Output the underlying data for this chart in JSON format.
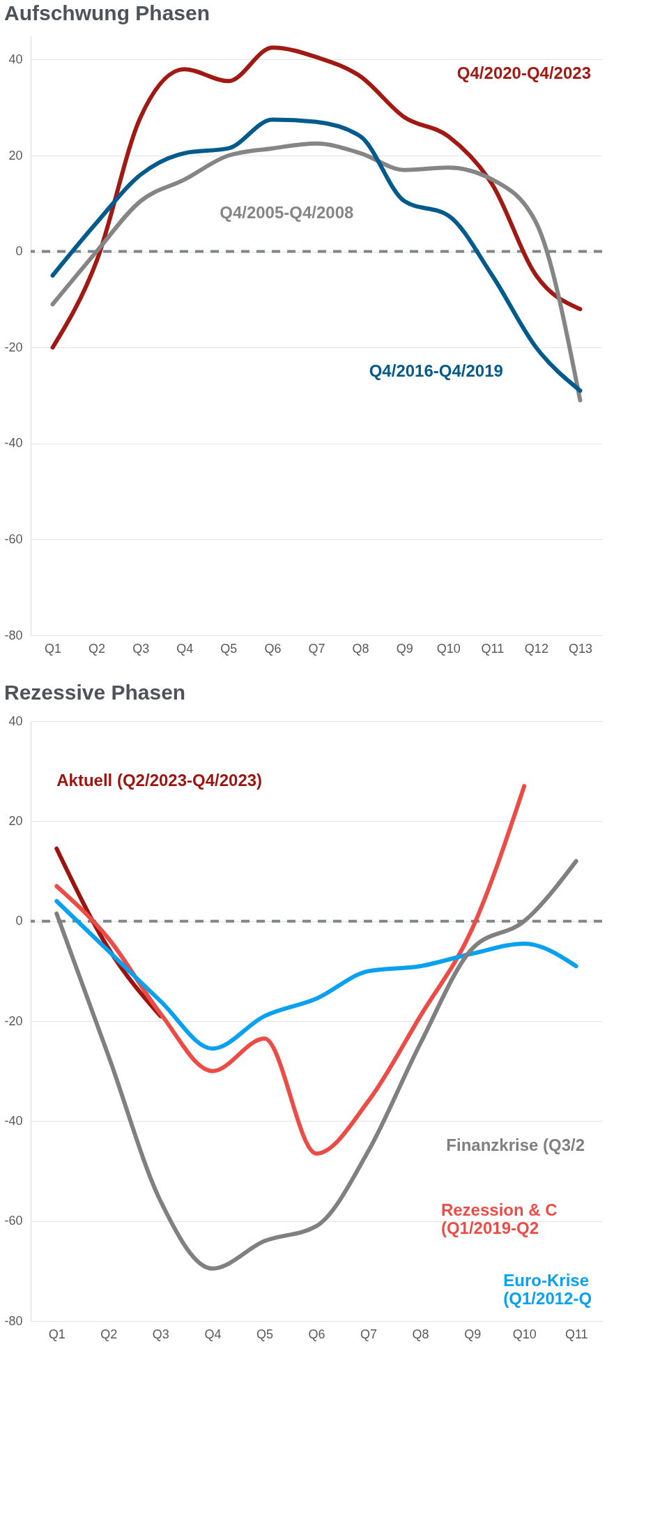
{
  "chart_data": [
    {
      "type": "line",
      "title": "Aufschwung Phasen",
      "categories": [
        "Q1",
        "Q2",
        "Q3",
        "Q4",
        "Q5",
        "Q6",
        "Q7",
        "Q8",
        "Q9",
        "Q10",
        "Q11",
        "Q12",
        "Q13"
      ],
      "ylim": [
        -80,
        45
      ],
      "yticks": [
        -80,
        -60,
        -40,
        -20,
        0,
        20,
        40
      ],
      "grid": "y",
      "ref_lines": [
        {
          "axis": "y",
          "value": 0,
          "color": "#7f8589",
          "line_style": "dashed"
        }
      ],
      "series": [
        {
          "name": "Q4/2020-Q4/2023",
          "color": "#a01912",
          "values": [
            -20,
            -2,
            28,
            38,
            35.5,
            42.5,
            40.5,
            36.5,
            28,
            24,
            14,
            -5,
            -12
          ]
        },
        {
          "name": "Q4/2005-Q4/2008",
          "color": "#858585",
          "values": [
            -11,
            0,
            10.5,
            15,
            20,
            21.5,
            22.5,
            20.5,
            17,
            17.5,
            15,
            6,
            -31
          ]
        },
        {
          "name": "Q4/2016-Q4/2019",
          "color": "#005a8c",
          "values": [
            -5,
            6,
            16,
            20.5,
            21.5,
            27.5,
            27,
            24,
            10.5,
            7.5,
            -5,
            -20,
            -29
          ]
        }
      ]
    },
    {
      "type": "line",
      "title": "Rezessive Phasen",
      "categories": [
        "Q1",
        "Q2",
        "Q3",
        "Q4",
        "Q5",
        "Q6",
        "Q7",
        "Q8",
        "Q9",
        "Q10",
        "Q11"
      ],
      "ylim": [
        -80,
        40
      ],
      "yticks": [
        -80,
        -60,
        -40,
        -20,
        0,
        20,
        40
      ],
      "grid": "y",
      "ref_lines": [
        {
          "axis": "y",
          "value": 0,
          "color": "#7f8589",
          "line_style": "dashed"
        }
      ],
      "series": [
        {
          "name": "Aktuell (Q2/2023-Q4/2023)",
          "color": "#9b1410",
          "values": [
            14.5,
            -5.5,
            -19,
            null,
            null,
            null,
            null,
            null,
            null,
            null,
            null
          ]
        },
        {
          "name": "Rezession & C\n(Q1/2019-Q2",
          "color": "#eb4c45",
          "values": [
            7,
            -3.5,
            -18.5,
            -30,
            -23.5,
            -46.5,
            -36,
            -19,
            -1.5,
            27,
            null
          ]
        },
        {
          "name": "Euro-Krise\n(Q1/2012-Q",
          "color": "#0aa0f0",
          "values": [
            4,
            -6,
            -16,
            -25.5,
            -19,
            -15.5,
            -10,
            -9,
            -6.5,
            -4.5,
            -9
          ]
        },
        {
          "name": "Finanzkrise (Q3/2",
          "color": "#808080",
          "values": [
            1.5,
            -27,
            -56,
            -69.5,
            -64,
            -61,
            -46,
            -24.5,
            -5.5,
            0,
            12
          ]
        }
      ]
    }
  ]
}
